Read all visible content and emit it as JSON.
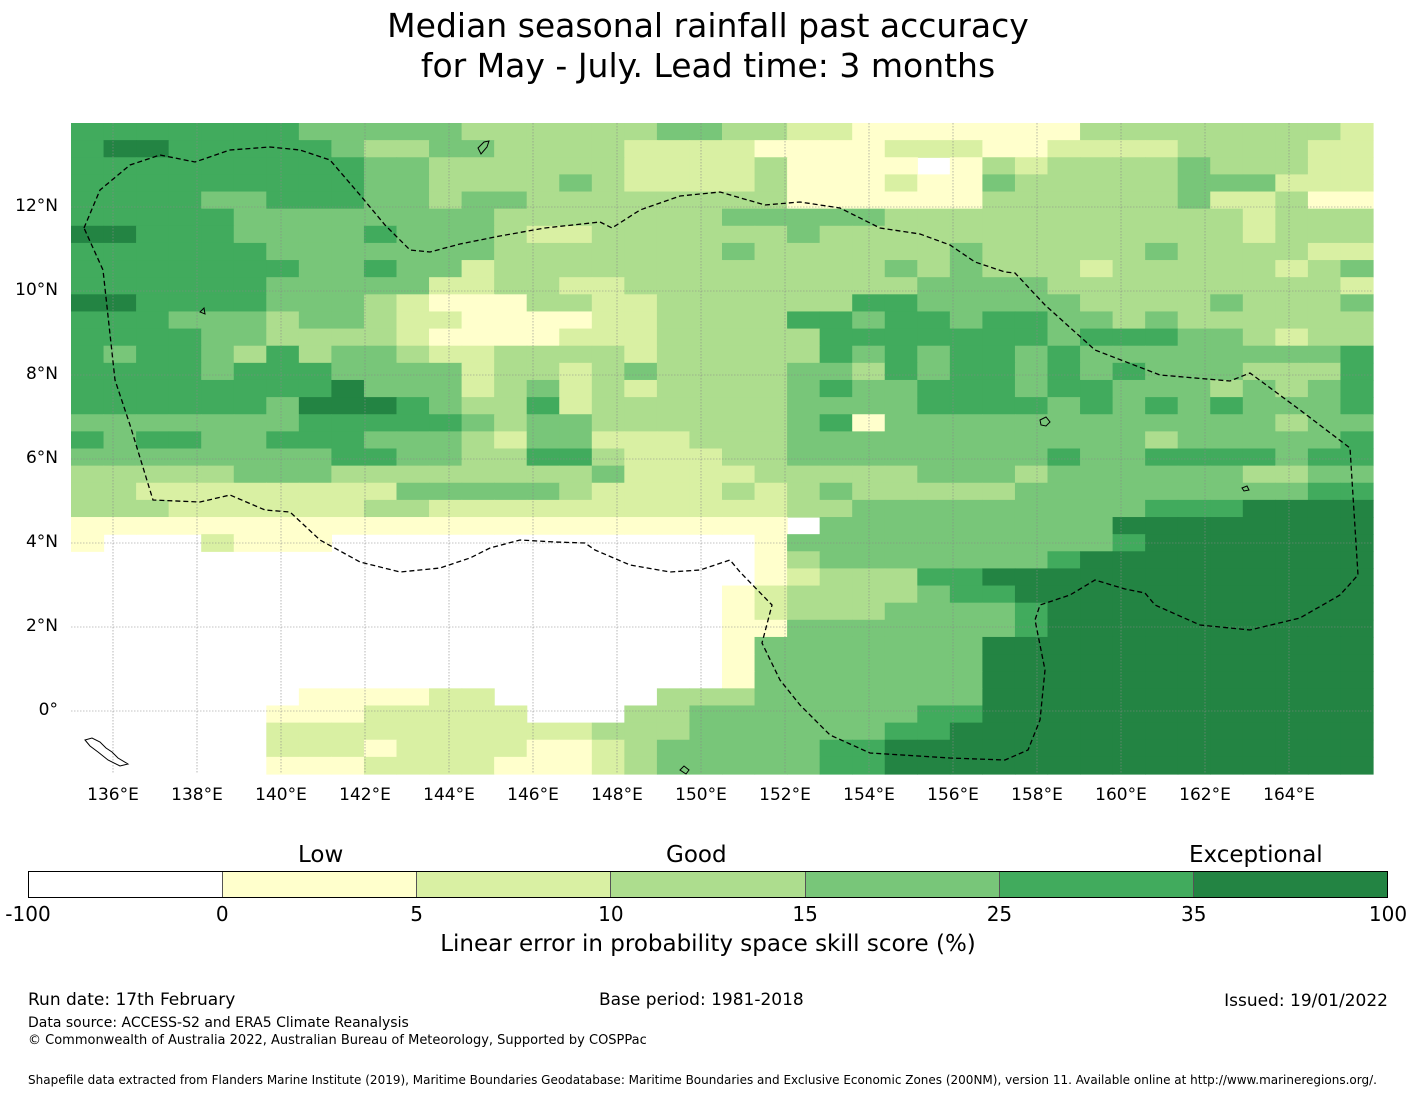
{
  "title": {
    "line1": "Median seasonal rainfall past accuracy",
    "line2": "for May - July. Lead time: 3 months"
  },
  "map": {
    "x_ticks": [
      "136°E",
      "138°E",
      "140°E",
      "142°E",
      "144°E",
      "146°E",
      "148°E",
      "150°E",
      "152°E",
      "154°E",
      "156°E",
      "158°E",
      "160°E",
      "162°E",
      "164°E"
    ],
    "x_tick_values": [
      136,
      138,
      140,
      142,
      144,
      146,
      148,
      150,
      152,
      154,
      156,
      158,
      160,
      162,
      164
    ],
    "y_ticks": [
      "12°N",
      "10°N",
      "8°N",
      "6°N",
      "4°N",
      "2°N",
      "0°"
    ],
    "y_tick_values": [
      12,
      10,
      8,
      6,
      4,
      2,
      0
    ],
    "lon_range": [
      135.0,
      166.0
    ],
    "lat_range": [
      -1.5,
      14.0
    ]
  },
  "colorbar": {
    "categories": {
      "low": "Low",
      "good": "Good",
      "exceptional": "Exceptional"
    },
    "boundaries": [
      "-100",
      "0",
      "5",
      "10",
      "15",
      "25",
      "35",
      "100"
    ],
    "colors": [
      "#ffffff",
      "#ffffcc",
      "#d9f0a3",
      "#addd8e",
      "#78c679",
      "#41ab5d",
      "#238443"
    ],
    "label": "Linear error in probability space skill score (%)"
  },
  "footer": {
    "run_date": "Run date: 17th February",
    "base_period": "Base period: 1981-2018",
    "issued": "Issued: 19/01/2022",
    "data_source": "Data source: ACCESS-S2 and ERA5 Climate Reanalysis",
    "copyright": "© Commonwealth of Australia 2022, Australian Bureau of Meteorology, Supported by COSPPac",
    "shapefile": "Shapefile data extracted from Flanders Marine Institute (2019), Maritime Boundaries Geodatabase: Maritime Boundaries and Exclusive Economic Zones (200NM), version 11. Available online at http://www.marineregions.org/."
  }
}
